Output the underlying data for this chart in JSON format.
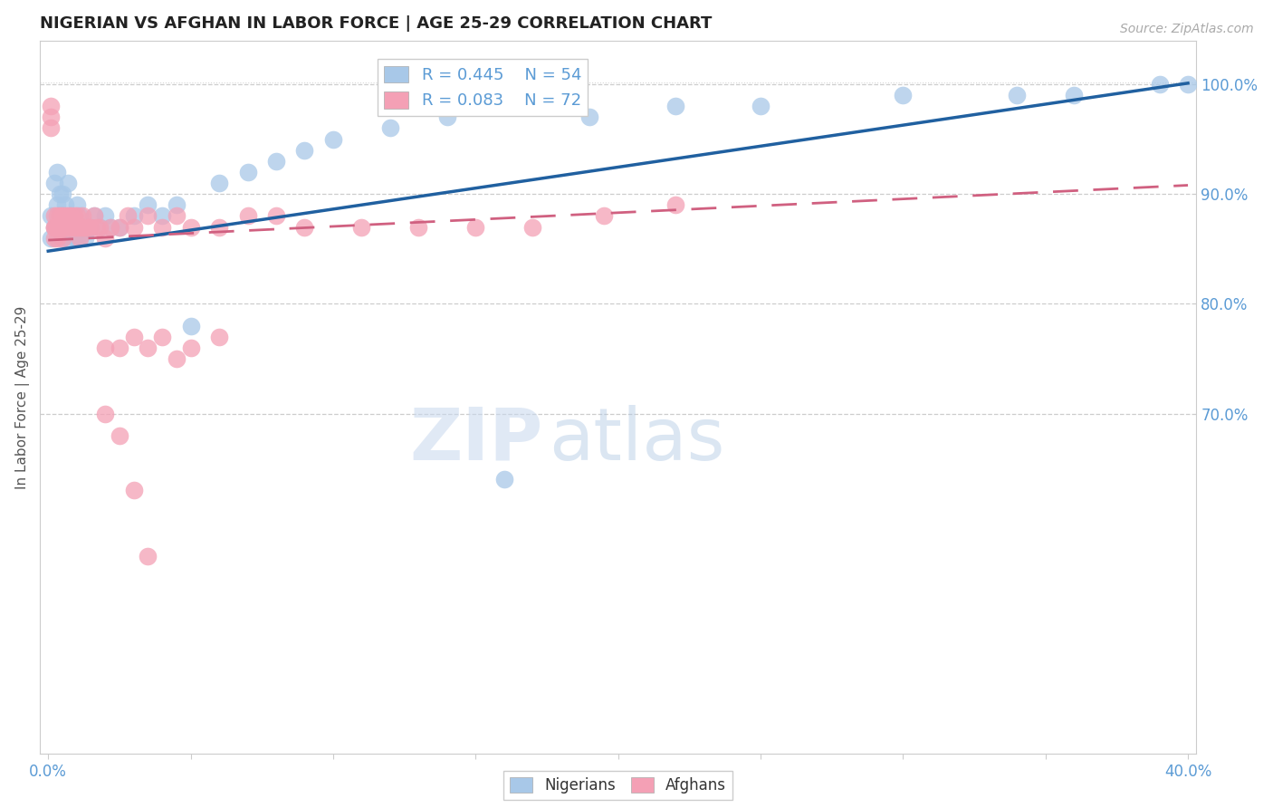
{
  "title": "NIGERIAN VS AFGHAN IN LABOR FORCE | AGE 25-29 CORRELATION CHART",
  "source": "Source: ZipAtlas.com",
  "ylabel": "In Labor Force | Age 25-29",
  "right_yticks": [
    0.7,
    0.8,
    0.9,
    1.0
  ],
  "right_ytick_labels": [
    "70.0%",
    "80.0%",
    "90.0%",
    "100.0%"
  ],
  "xlim": [
    -0.003,
    0.403
  ],
  "ylim": [
    0.39,
    1.04
  ],
  "nigerian_color": "#a8c8e8",
  "afghan_color": "#f4a0b5",
  "nigerian_line_color": "#2060a0",
  "afghan_line_color": "#d06080",
  "nigerian_R": 0.445,
  "nigerian_N": 54,
  "afghan_R": 0.083,
  "afghan_N": 72,
  "title_color": "#222222",
  "axis_color": "#5b9bd5",
  "grid_color": "#c8c8c8",
  "watermark_zip": "ZIP",
  "watermark_atlas": "atlas",
  "nigerian_scatter_x": [
    0.001,
    0.001,
    0.002,
    0.002,
    0.003,
    0.003,
    0.003,
    0.004,
    0.004,
    0.005,
    0.005,
    0.005,
    0.006,
    0.006,
    0.007,
    0.007,
    0.008,
    0.008,
    0.009,
    0.009,
    0.01,
    0.01,
    0.011,
    0.011,
    0.012,
    0.013,
    0.014,
    0.015,
    0.016,
    0.018,
    0.02,
    0.022,
    0.025,
    0.03,
    0.035,
    0.04,
    0.045,
    0.05,
    0.06,
    0.07,
    0.08,
    0.09,
    0.1,
    0.12,
    0.14,
    0.16,
    0.19,
    0.22,
    0.25,
    0.3,
    0.34,
    0.36,
    0.39,
    0.4
  ],
  "nigerian_scatter_y": [
    0.86,
    0.88,
    0.87,
    0.91,
    0.87,
    0.89,
    0.92,
    0.88,
    0.9,
    0.86,
    0.88,
    0.9,
    0.87,
    0.89,
    0.86,
    0.91,
    0.87,
    0.88,
    0.86,
    0.87,
    0.86,
    0.89,
    0.86,
    0.88,
    0.87,
    0.86,
    0.87,
    0.87,
    0.88,
    0.87,
    0.88,
    0.87,
    0.87,
    0.88,
    0.89,
    0.88,
    0.89,
    0.78,
    0.91,
    0.92,
    0.93,
    0.94,
    0.95,
    0.96,
    0.97,
    0.64,
    0.97,
    0.98,
    0.98,
    0.99,
    0.99,
    0.99,
    1.0,
    1.0
  ],
  "afghan_scatter_x": [
    0.001,
    0.001,
    0.001,
    0.002,
    0.002,
    0.002,
    0.002,
    0.003,
    0.003,
    0.003,
    0.003,
    0.004,
    0.004,
    0.004,
    0.005,
    0.005,
    0.005,
    0.005,
    0.006,
    0.006,
    0.006,
    0.007,
    0.007,
    0.007,
    0.008,
    0.008,
    0.008,
    0.009,
    0.009,
    0.01,
    0.01,
    0.011,
    0.011,
    0.012,
    0.012,
    0.013,
    0.014,
    0.015,
    0.016,
    0.017,
    0.018,
    0.02,
    0.022,
    0.025,
    0.028,
    0.03,
    0.035,
    0.04,
    0.045,
    0.05,
    0.06,
    0.07,
    0.08,
    0.09,
    0.11,
    0.13,
    0.15,
    0.17,
    0.195,
    0.22,
    0.02,
    0.025,
    0.03,
    0.035,
    0.04,
    0.045,
    0.05,
    0.06,
    0.02,
    0.025,
    0.03,
    0.035
  ],
  "afghan_scatter_y": [
    0.98,
    0.97,
    0.96,
    0.87,
    0.88,
    0.87,
    0.86,
    0.87,
    0.88,
    0.86,
    0.87,
    0.87,
    0.88,
    0.87,
    0.87,
    0.88,
    0.87,
    0.86,
    0.87,
    0.88,
    0.87,
    0.87,
    0.88,
    0.87,
    0.87,
    0.88,
    0.87,
    0.88,
    0.87,
    0.87,
    0.88,
    0.87,
    0.86,
    0.87,
    0.88,
    0.87,
    0.87,
    0.87,
    0.88,
    0.87,
    0.87,
    0.86,
    0.87,
    0.87,
    0.88,
    0.87,
    0.88,
    0.87,
    0.88,
    0.87,
    0.87,
    0.88,
    0.88,
    0.87,
    0.87,
    0.87,
    0.87,
    0.87,
    0.88,
    0.89,
    0.76,
    0.76,
    0.77,
    0.76,
    0.77,
    0.75,
    0.76,
    0.77,
    0.7,
    0.68,
    0.63,
    0.57
  ],
  "nigerian_trendline": [
    0.848,
    1.001
  ],
  "afghan_trendline": [
    0.858,
    0.908
  ]
}
